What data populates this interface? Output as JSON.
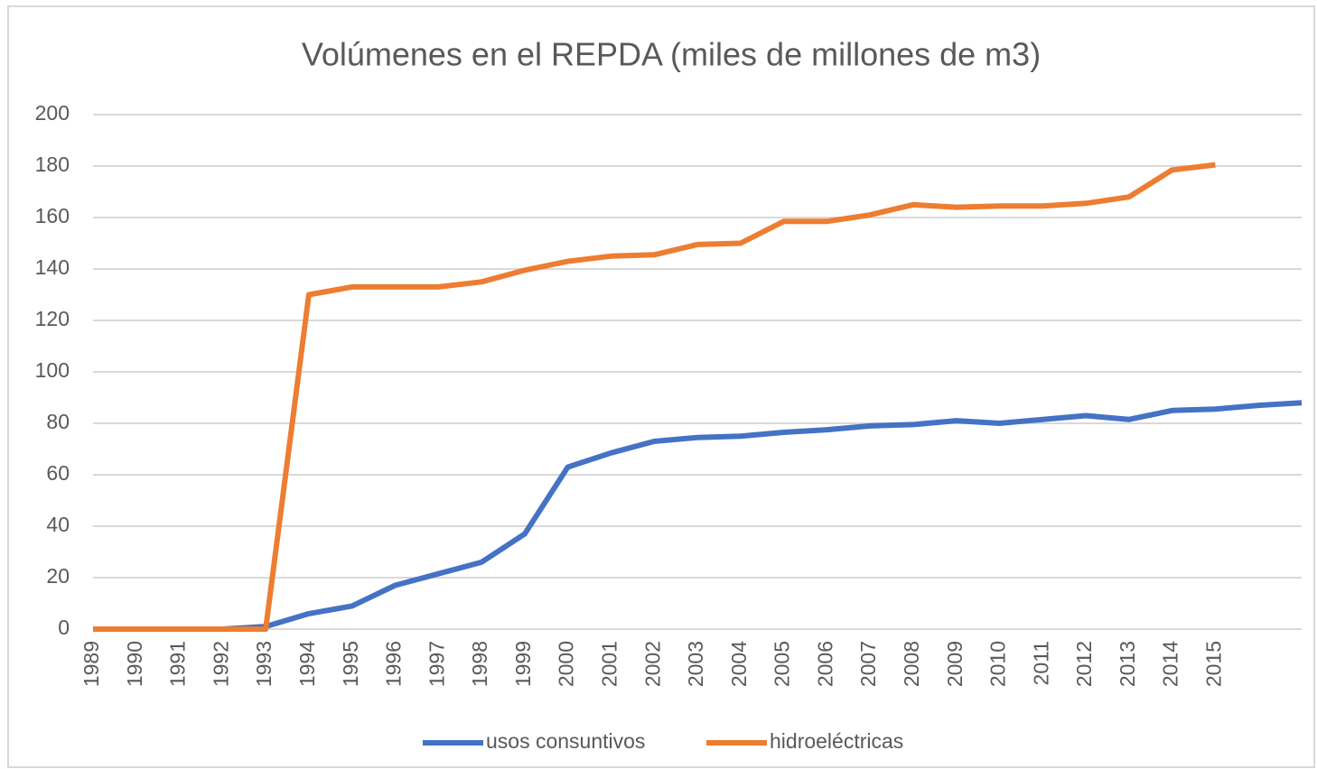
{
  "chart_data": {
    "type": "line",
    "title": "Volúmenes en el REPDA  (miles de millones de m3)",
    "categories": [
      "1989",
      "1990",
      "1991",
      "1992",
      "1993",
      "1994",
      "1995",
      "1996",
      "1997",
      "1998",
      "1999",
      "2000",
      "2001",
      "2002",
      "2003",
      "2004",
      "2005",
      "2006",
      "2007",
      "2008",
      "2009",
      "2010",
      "2011",
      "2012",
      "2013",
      "2014",
      "2015",
      null,
      null
    ],
    "series": [
      {
        "name": "usos consuntivos",
        "color": "#4472c4",
        "values": [
          0,
          0,
          0,
          0,
          1,
          6,
          9,
          17,
          21.5,
          26,
          37,
          63,
          68.5,
          73,
          74.5,
          75,
          76.5,
          77.5,
          79,
          79.5,
          81,
          80,
          81.5,
          83,
          81.5,
          85,
          85.5,
          87,
          88
        ]
      },
      {
        "name": "hidroeléctricas",
        "color": "#ed7d31",
        "values": [
          0,
          0,
          0,
          0,
          0,
          130,
          133,
          133,
          133,
          135,
          139.5,
          143,
          145,
          145.5,
          149.5,
          150,
          158.5,
          158.5,
          161,
          165,
          164,
          164.5,
          164.5,
          165.5,
          168,
          178.5,
          180.5,
          null,
          null
        ]
      }
    ],
    "ylim": [
      0,
      200
    ],
    "yticks": [
      0,
      20,
      40,
      60,
      80,
      100,
      120,
      140,
      160,
      180,
      200
    ],
    "grid": true,
    "legend": "bottom"
  }
}
